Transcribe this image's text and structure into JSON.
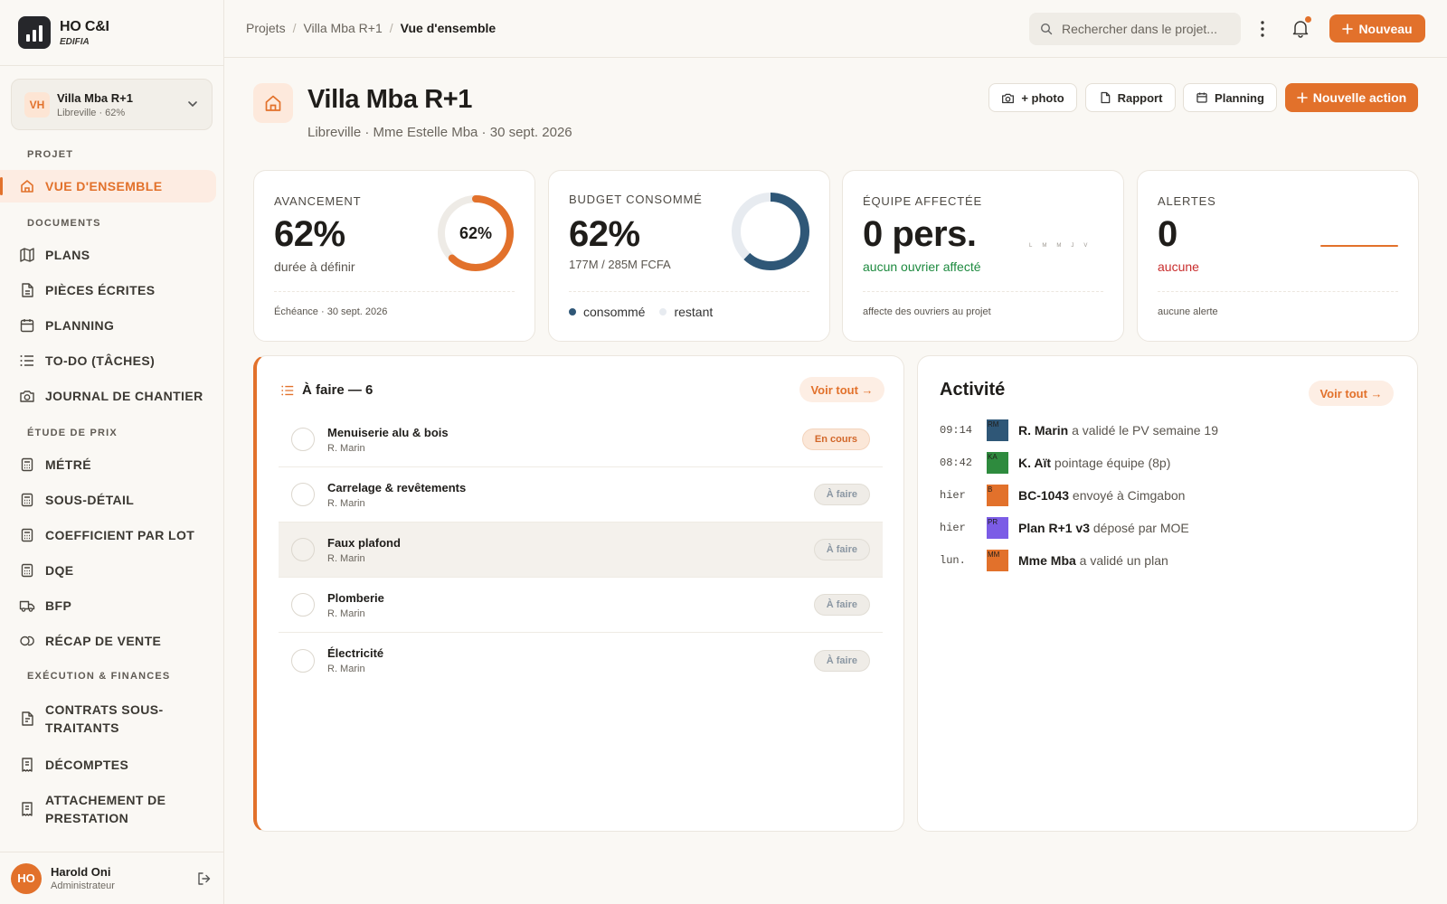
{
  "brand": {
    "name": "HO C&I",
    "sub": "EDIFIA"
  },
  "project_selector": {
    "initials": "VH",
    "name": "Villa Mba R+1",
    "meta": "Libreville · 62%"
  },
  "nav": {
    "sections": [
      "PROJET",
      "DOCUMENTS",
      "ÉTUDE DE PRIX",
      "EXÉCUTION & FINANCES"
    ],
    "items": [
      {
        "label": "VUE D'ENSEMBLE",
        "icon": "home-icon",
        "active": true
      },
      {
        "label": "PLANS",
        "icon": "map-icon"
      },
      {
        "label": "PIÈCES ÉCRITES",
        "icon": "document-icon"
      },
      {
        "label": "PLANNING",
        "icon": "calendar-icon"
      },
      {
        "label": "TO-DO (TÂCHES)",
        "icon": "list-icon"
      },
      {
        "label": "JOURNAL DE CHANTIER",
        "icon": "camera-icon"
      },
      {
        "label": "MÉTRÉ",
        "icon": "calculator-icon"
      },
      {
        "label": "SOUS-DÉTAIL",
        "icon": "calculator-icon"
      },
      {
        "label": "COEFFICIENT PAR LOT",
        "icon": "calculator-icon"
      },
      {
        "label": "DQE",
        "icon": "calculator-icon"
      },
      {
        "label": "BFP",
        "icon": "truck-icon"
      },
      {
        "label": "RÉCAP DE VENTE",
        "icon": "coins-icon"
      },
      {
        "label": "CONTRATS SOUS-TRAITANTS",
        "icon": "contract-icon"
      },
      {
        "label": "DÉCOMPTES",
        "icon": "receipt-icon"
      },
      {
        "label": "ATTACHEMENT DE PRESTATION",
        "icon": "receipt-icon"
      }
    ]
  },
  "user": {
    "initials": "HO",
    "name": "Harold Oni",
    "role": "Administrateur"
  },
  "topbar": {
    "breadcrumbs": [
      "Projets",
      "Villa Mba R+1",
      "Vue d'ensemble"
    ],
    "search_placeholder": "Rechercher dans le projet...",
    "new_label": "Nouveau"
  },
  "header": {
    "title": "Villa Mba R+1",
    "subtitle": "Libreville · Mme Estelle Mba · 30 sept. 2026",
    "buttons": [
      "+ photo",
      "Rapport",
      "Planning"
    ],
    "action_label": "Nouvelle action"
  },
  "kpis": {
    "avancement": {
      "label": "AVANCEMENT",
      "value": "62%",
      "sub": "durée à définir",
      "foot": "Échéance · 30 sept. 2026",
      "ring_label": "62%",
      "ring_fraction": 0.62
    },
    "budget": {
      "label": "BUDGET CONSOMMÉ",
      "value": "62%",
      "sub": "177M / 285M FCFA",
      "ring_fraction": 0.62,
      "legend_consumed": "consommé",
      "legend_remaining": "restant"
    },
    "equipe": {
      "label": "ÉQUIPE AFFECTÉE",
      "value": "0 pers.",
      "sub": "aucun ouvrier affecté",
      "foot": "affecte des ouvriers au projet",
      "days": [
        "L",
        "M",
        "M",
        "J",
        "V"
      ]
    },
    "alertes": {
      "label": "ALERTES",
      "value": "0",
      "sub": "aucune",
      "foot": "aucune alerte"
    }
  },
  "colors": {
    "accent": "#e2712b",
    "budget_ring": "#2f5777",
    "success": "#1d8a3f",
    "danger": "#c92d2d"
  },
  "todo": {
    "title": "À faire — 6",
    "link": "Voir tout →",
    "tasks": [
      {
        "name": "Menuiserie alu & bois",
        "owner": "R. Marin",
        "status": "En cours"
      },
      {
        "name": "Carrelage & revêtements",
        "owner": "R. Marin",
        "status": "À faire"
      },
      {
        "name": "Faux plafond",
        "owner": "R. Marin",
        "status": "À faire"
      },
      {
        "name": "Plomberie",
        "owner": "R. Marin",
        "status": "À faire"
      },
      {
        "name": "Électricité",
        "owner": "R. Marin",
        "status": "À faire"
      }
    ]
  },
  "activity": {
    "title": "Activité",
    "link": "Voir tout →",
    "items": [
      {
        "time": "09:14",
        "initials": "RM",
        "color": "#2f5777",
        "actor": "R. Marin",
        "text": " a validé le PV semaine 19"
      },
      {
        "time": "08:42",
        "initials": "KA",
        "color": "#2e8b3e",
        "actor": "K. Aït",
        "text": " pointage équipe (8p)"
      },
      {
        "time": "hier",
        "initials": "B",
        "color": "#e2712b",
        "actor": "BC-1043",
        "text": " envoyé à Cimgabon"
      },
      {
        "time": "hier",
        "initials": "PR",
        "color": "#7b5ce6",
        "actor": "Plan R+1 v3",
        "text": " déposé par MOE"
      },
      {
        "time": "lun.",
        "initials": "MM",
        "color": "#e2712b",
        "actor": "Mme Mba",
        "text": " a validé un plan"
      }
    ]
  }
}
